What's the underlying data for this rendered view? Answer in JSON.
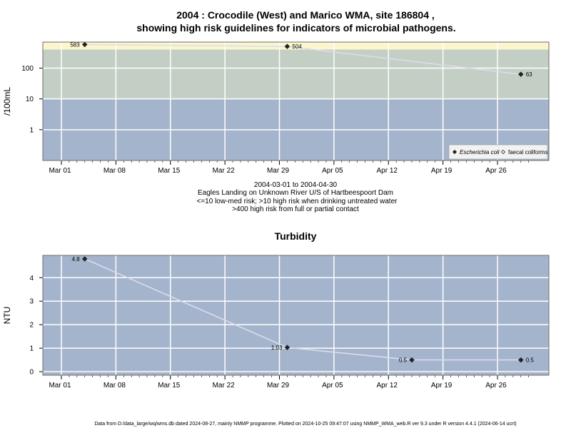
{
  "title_line1": "2004 : Crocodile (West) and Marico WMA, site 186804 ,",
  "title_line2": "showing high risk guidelines for indicators of microbial pathogens.",
  "caption": {
    "line1": "2004-03-01 to 2004-04-30",
    "line2": "Eagles Landing on Unknown River U/S of Hartbeespoort Dam",
    "line3": "<=10 low-med risk; >10 high risk when drinking untreated water",
    "line4": ">400 high risk from full or partial contact"
  },
  "footer": "Data from D:/data_large/wq/wms.db dated 2024-08-27, mainly NMMP programme. Plotted on 2024-10-25 09:47:07 using NMMP_WMA_web.R ver 9.3 under R version 4.4.1 (2024-06-14 ucrt)",
  "colors": {
    "low_band": "#a4b4cc",
    "mid_band": "#c3cfc4",
    "high_band": "#fbf6cd",
    "grid": "#ffffff",
    "line": "#dcdcea",
    "point": "#222222"
  },
  "chart_data": [
    {
      "type": "line",
      "title": "",
      "ylabel": "/100mL",
      "yscale": "log",
      "x_tick_labels": [
        "Mar 01",
        "Mar 08",
        "Mar 15",
        "Mar 22",
        "Mar 29",
        "Apr 05",
        "Apr 12",
        "Apr 19",
        "Apr 26"
      ],
      "x_tick_dates": [
        "2004-03-01",
        "2004-03-08",
        "2004-03-15",
        "2004-03-22",
        "2004-03-29",
        "2004-04-05",
        "2004-04-12",
        "2004-04-19",
        "2004-04-26"
      ],
      "y_tick_labels": [
        "1",
        "10",
        "100"
      ],
      "y_tick_values": [
        1,
        10,
        100
      ],
      "ylim": [
        0.1,
        700
      ],
      "bands": [
        {
          "from": 0.1,
          "to": 10,
          "color": "#a4b4cc"
        },
        {
          "from": 10,
          "to": 400,
          "color": "#c3cfc4"
        },
        {
          "from": 400,
          "to": 700,
          "color": "#fbf6cd"
        }
      ],
      "series": [
        {
          "name": "Escherichia coli",
          "x": [
            "2004-03-04",
            "2004-03-30",
            "2004-04-29"
          ],
          "y": [
            583,
            504,
            63
          ],
          "labels": [
            "583",
            "504",
            "63"
          ],
          "label_side": [
            "left",
            "right",
            "right"
          ]
        }
      ],
      "legend": {
        "position": "bottom-right",
        "entries": [
          {
            "label": "Escherichia coli",
            "marker": "filled-diamond",
            "italic": true
          },
          {
            "label": "faecal coliforms",
            "marker": "open-diamond",
            "italic": false
          }
        ]
      }
    },
    {
      "type": "line",
      "title": "Turbidity",
      "ylabel": "NTU",
      "yscale": "linear",
      "x_tick_labels": [
        "Mar 01",
        "Mar 08",
        "Mar 15",
        "Mar 22",
        "Mar 29",
        "Apr 05",
        "Apr 12",
        "Apr 19",
        "Apr 26"
      ],
      "x_tick_dates": [
        "2004-03-01",
        "2004-03-08",
        "2004-03-15",
        "2004-03-22",
        "2004-03-29",
        "2004-04-05",
        "2004-04-12",
        "2004-04-19",
        "2004-04-26"
      ],
      "y_tick_labels": [
        "0",
        "1",
        "2",
        "3",
        "4"
      ],
      "y_tick_values": [
        0,
        1,
        2,
        3,
        4
      ],
      "ylim": [
        -0.15,
        4.95
      ],
      "series": [
        {
          "x": [
            "2004-03-04",
            "2004-03-30",
            "2004-04-15",
            "2004-04-29"
          ],
          "y": [
            4.8,
            1.03,
            0.5,
            0.5
          ],
          "labels": [
            "4.8",
            "1.03",
            "0.5",
            "0.5"
          ],
          "label_side": [
            "left",
            "left",
            "left",
            "right"
          ]
        }
      ]
    }
  ]
}
